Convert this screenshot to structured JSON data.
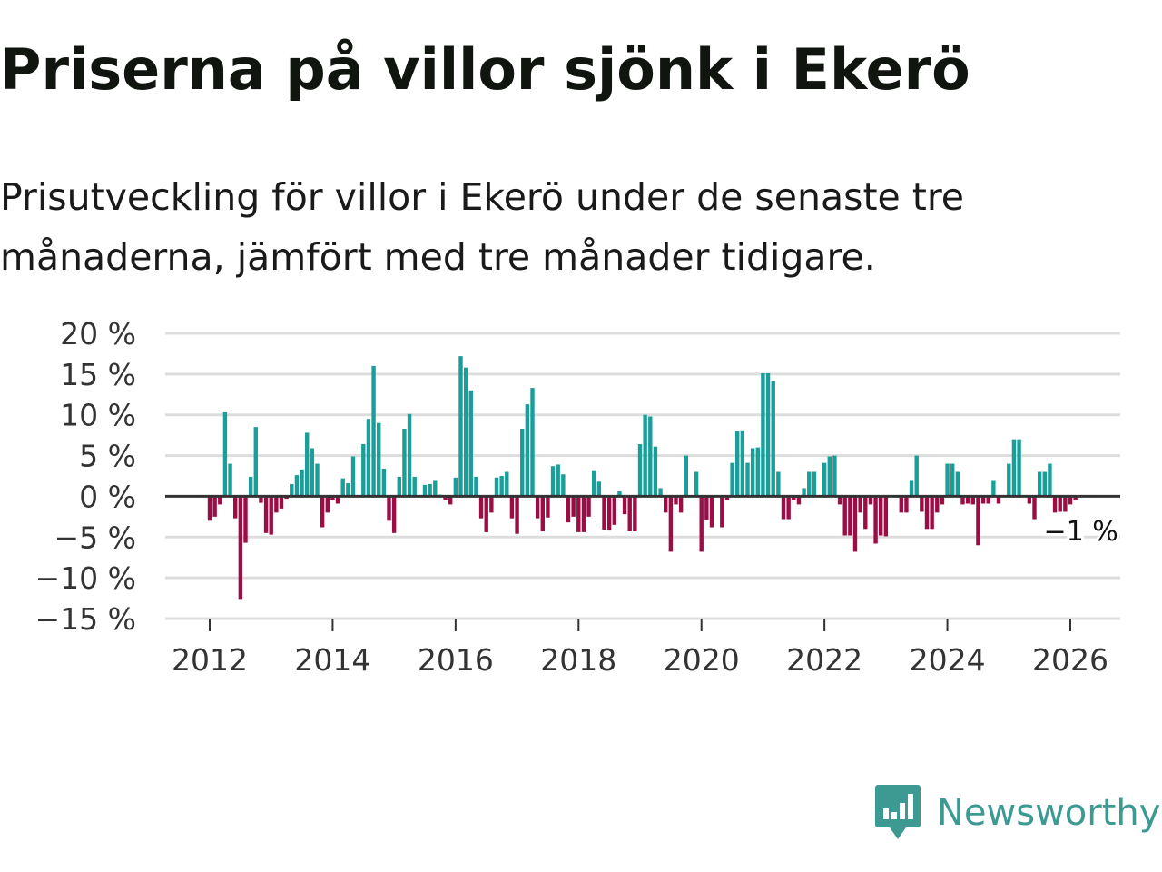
{
  "title": "Priserna på villor sjönk i Ekerö",
  "subtitle": "Prisutveckling för villor i Ekerö under de senaste tre månaderna, jämfört med tre månader tidigare.",
  "brand": {
    "name": "Newsworthy",
    "icon": "newsworthy-logo-icon"
  },
  "colors": {
    "positive": "#1a9e9a",
    "negative": "#9c0d45",
    "grid": "#dddddd",
    "axis": "#333333",
    "brand": "#3d9a93"
  },
  "chart_data": {
    "type": "bar",
    "title": "Priserna på villor sjönk i Ekerö",
    "xlabel": "",
    "ylabel": "",
    "ylim": [
      -15,
      20
    ],
    "yticks": [
      20,
      15,
      10,
      5,
      0,
      -5,
      -10,
      -15
    ],
    "ytick_labels": [
      "20 %",
      "15 %",
      "10 %",
      "5 %",
      "0 %",
      "−5 %",
      "−10 %",
      "−15 %"
    ],
    "xticks": [
      2012,
      2014,
      2016,
      2018,
      2020,
      2022,
      2024,
      2026
    ],
    "xtick_labels": [
      "2012",
      "2014",
      "2016",
      "2018",
      "2020",
      "2022",
      "2024",
      "2026"
    ],
    "start_year": 2012,
    "start_month": 1,
    "values": [
      -3.0,
      -2.5,
      -1.0,
      10.3,
      4.0,
      -2.7,
      -12.7,
      -5.7,
      2.4,
      8.5,
      -0.8,
      -4.5,
      -4.7,
      -2.0,
      -1.5,
      -0.3,
      1.5,
      2.6,
      3.3,
      7.8,
      5.9,
      4.0,
      -3.8,
      -2.0,
      -0.5,
      -0.9,
      2.2,
      1.6,
      4.9,
      0.0,
      6.4,
      9.5,
      16.0,
      9.0,
      3.4,
      -3.0,
      -4.5,
      2.4,
      8.3,
      10.1,
      2.4,
      0.0,
      1.4,
      1.5,
      2.0,
      0.2,
      -0.5,
      -1.0,
      2.3,
      17.2,
      15.8,
      13.0,
      2.4,
      -2.7,
      -4.4,
      -2.0,
      2.3,
      2.5,
      3.0,
      -2.7,
      -4.6,
      8.3,
      11.3,
      13.3,
      -2.7,
      -4.3,
      -2.6,
      3.7,
      3.9,
      2.7,
      -3.2,
      -2.5,
      -4.4,
      -4.4,
      -2.5,
      3.2,
      1.8,
      -4.1,
      -4.2,
      -3.5,
      0.6,
      -2.2,
      -4.3,
      -4.3,
      6.4,
      10.0,
      9.8,
      6.1,
      1.0,
      -2.0,
      -6.8,
      -1.0,
      -2.0,
      5.0,
      -0.1,
      3.0,
      -6.8,
      -2.9,
      -3.8,
      0.0,
      -3.8,
      -0.5,
      4.1,
      8.0,
      8.1,
      4.1,
      5.9,
      6.0,
      15.1,
      15.1,
      14.1,
      3.0,
      -2.8,
      -2.8,
      -0.5,
      -1.0,
      1.0,
      3.0,
      3.0,
      0.0,
      4.1,
      4.9,
      5.0,
      -1.0,
      -4.8,
      -4.8,
      -6.8,
      -2.0,
      -4.0,
      -1.0,
      -5.8,
      -4.8,
      -4.9,
      0.0,
      0.0,
      -2.0,
      -2.0,
      2.0,
      5.0,
      -1.9,
      -4.0,
      -4.0,
      -2.0,
      -1.0,
      4.0,
      4.0,
      3.0,
      -1.0,
      -0.9,
      -1.0,
      -6.0,
      -0.9,
      -0.9,
      2.0,
      -0.9,
      0.0,
      4.0,
      7.0,
      7.0,
      0.0,
      -0.9,
      -2.8,
      3.0,
      3.0,
      4.0,
      -2.0,
      -1.9,
      -1.9,
      -1.0,
      -0.5
    ],
    "last_value_label": "−1 %"
  }
}
